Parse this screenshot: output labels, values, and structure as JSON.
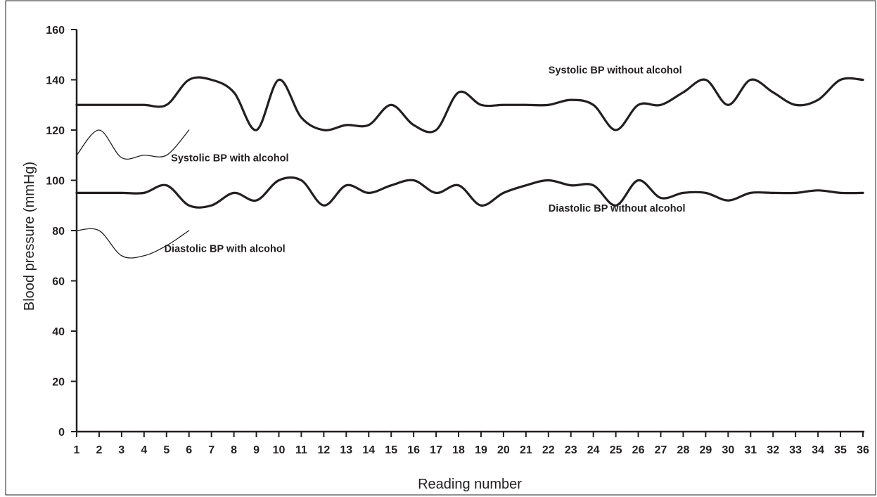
{
  "chart_data": {
    "type": "line",
    "title": "",
    "xlabel": "Reading number",
    "ylabel": "Blood pressure (mmHg)",
    "xlim": [
      1,
      36
    ],
    "ylim": [
      0,
      160
    ],
    "x_ticks": [
      1,
      2,
      3,
      4,
      5,
      6,
      7,
      8,
      9,
      10,
      11,
      12,
      13,
      14,
      15,
      16,
      17,
      18,
      19,
      20,
      21,
      22,
      23,
      24,
      25,
      26,
      27,
      28,
      29,
      30,
      31,
      32,
      33,
      34,
      35,
      36
    ],
    "y_ticks": [
      0,
      20,
      40,
      60,
      80,
      100,
      120,
      140,
      160
    ],
    "grid": false,
    "legend": "none",
    "series": [
      {
        "name": "Systolic BP without alcohol",
        "weight": "thick",
        "x": [
          1,
          2,
          3,
          4,
          5,
          6,
          7,
          8,
          9,
          10,
          11,
          12,
          13,
          14,
          15,
          16,
          17,
          18,
          19,
          20,
          21,
          22,
          23,
          24,
          25,
          26,
          27,
          28,
          29,
          30,
          31,
          32,
          33,
          34,
          35,
          36
        ],
        "values": [
          130,
          130,
          130,
          130,
          130,
          140,
          140,
          135,
          120,
          140,
          125,
          120,
          122,
          122,
          130,
          122,
          120,
          135,
          130,
          130,
          130,
          130,
          132,
          130,
          120,
          130,
          130,
          135,
          140,
          130,
          140,
          135,
          130,
          132,
          140,
          140
        ]
      },
      {
        "name": "Diastolic BP without alcohol",
        "weight": "thick",
        "x": [
          1,
          2,
          3,
          4,
          5,
          6,
          7,
          8,
          9,
          10,
          11,
          12,
          13,
          14,
          15,
          16,
          17,
          18,
          19,
          20,
          21,
          22,
          23,
          24,
          25,
          26,
          27,
          28,
          29,
          30,
          31,
          32,
          33,
          34,
          35,
          36
        ],
        "values": [
          95,
          95,
          95,
          95,
          98,
          90,
          90,
          95,
          92,
          100,
          100,
          90,
          98,
          95,
          98,
          100,
          95,
          98,
          90,
          95,
          98,
          100,
          98,
          98,
          90,
          100,
          93,
          95,
          95,
          92,
          95,
          95,
          95,
          96,
          95,
          95
        ]
      },
      {
        "name": "Systolic BP with alcohol",
        "weight": "thin",
        "x": [
          1,
          2,
          3,
          4,
          5,
          6
        ],
        "values": [
          110,
          120,
          109,
          110,
          110,
          120
        ]
      },
      {
        "name": "Diastolic BP with alcohol",
        "weight": "thin",
        "x": [
          1,
          2,
          3,
          4,
          5,
          6
        ],
        "values": [
          80,
          80,
          70,
          70,
          74,
          80
        ]
      }
    ],
    "annotations": [
      {
        "text": "Systolic BP without alcohol",
        "x": 22,
        "y": 142.5
      },
      {
        "text": "Systolic BP with alcohol",
        "x": 5.2,
        "y": 107.5
      },
      {
        "text": "Diastolic BP without alcohol",
        "x": 22,
        "y": 87.5
      },
      {
        "text": "Diastolic BP with alcohol",
        "x": 4.9,
        "y": 71.5
      }
    ]
  },
  "colors": {
    "ink": "#231f20",
    "background": "#ffffff",
    "frame": "#231f20"
  }
}
